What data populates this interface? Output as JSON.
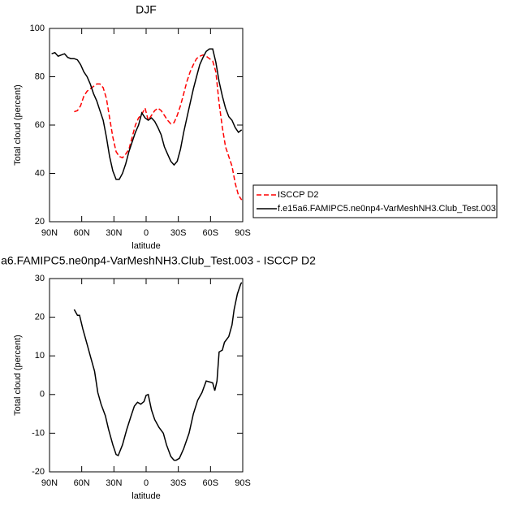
{
  "chart_data": [
    {
      "type": "line",
      "title": "DJF",
      "xlabel": "latitude",
      "ylabel": "Total cloud (percent)",
      "x": [
        88,
        85,
        82,
        79,
        76,
        73,
        70,
        67,
        64,
        61,
        58,
        55,
        52,
        49,
        46,
        43,
        40,
        37,
        34,
        31,
        28,
        25,
        22,
        19,
        16,
        13,
        10,
        7,
        4,
        1,
        -2,
        -5,
        -8,
        -11,
        -14,
        -17,
        -20,
        -23,
        -26,
        -29,
        -32,
        -35,
        -38,
        -41,
        -44,
        -47,
        -50,
        -53,
        -56,
        -59,
        -62,
        -65,
        -68,
        -71,
        -74,
        -77,
        -80,
        -83,
        -86,
        -89
      ],
      "series": [
        {
          "name": "ISCCP D2",
          "color": "#ff0000",
          "dash": true,
          "values": [
            null,
            null,
            null,
            null,
            null,
            null,
            null,
            65.5,
            66,
            68,
            72,
            74,
            75,
            76,
            77,
            77,
            75.5,
            71,
            63,
            55,
            49,
            47,
            46.5,
            48,
            50,
            55,
            60,
            63,
            64.5,
            67,
            62,
            64,
            66,
            67,
            66,
            64,
            62,
            60.5,
            61,
            64,
            68,
            73,
            78,
            82,
            85,
            87.5,
            88.5,
            89,
            88.5,
            87.5,
            86.5,
            82,
            69,
            59,
            51,
            47,
            43,
            36,
            31,
            29
          ]
        },
        {
          "name": "f.e15a6.FAMIPC5.ne0np4-VarMeshNH3.Club_Test.003",
          "color": "#000000",
          "dash": false,
          "values": [
            89.5,
            90,
            88.5,
            89,
            89.5,
            88,
            87.5,
            87.5,
            87,
            85,
            82,
            80,
            77,
            73,
            70,
            66,
            62,
            55,
            47,
            41,
            37.5,
            37.5,
            40,
            44,
            49,
            53,
            57,
            60,
            65,
            63,
            62,
            63,
            61.5,
            59,
            56,
            51,
            48,
            45,
            43.5,
            45,
            50,
            57,
            63,
            69,
            75,
            80,
            85,
            88,
            90.5,
            91.5,
            91.5,
            86,
            78,
            72,
            67,
            63.5,
            62,
            59,
            57,
            58
          ]
        }
      ],
      "xlim": [
        90,
        -90
      ],
      "xticks": [
        {
          "value": 90,
          "label": "90N"
        },
        {
          "value": 60,
          "label": "60N"
        },
        {
          "value": 30,
          "label": "30N"
        },
        0,
        {
          "value": -30,
          "label": "30S"
        },
        {
          "value": -60,
          "label": "60S"
        },
        {
          "value": -90,
          "label": "90S"
        }
      ],
      "ylim": [
        20,
        100
      ],
      "yticks": [
        20,
        40,
        60,
        80,
        100
      ],
      "legend": "right"
    },
    {
      "type": "line",
      "title": "a6.FAMIPC5.ne0np4-VarMeshNH3.Club_Test.003 - ISCCP D2",
      "xlabel": "latitude",
      "ylabel": "Total cloud (percent)",
      "x": [
        67,
        64,
        62,
        59,
        55,
        52,
        48,
        45,
        42,
        38,
        35,
        31,
        28,
        26,
        22,
        18,
        14,
        11,
        8,
        5,
        2,
        0,
        -2,
        -5,
        -8,
        -12,
        -16,
        -19,
        -23,
        -26,
        -28,
        -31,
        -35,
        -40,
        -44,
        -48,
        -52,
        -56,
        -60,
        -62,
        -64,
        -66,
        -68,
        -71,
        -73,
        -77,
        -80,
        -82,
        -85,
        -88,
        -89
      ],
      "series": [
        {
          "name": null,
          "color": "#000000",
          "dash": false,
          "values": [
            22,
            20.5,
            20.5,
            17,
            13,
            10,
            6,
            0.5,
            -2.5,
            -5.5,
            -9,
            -13,
            -15.5,
            -15.8,
            -13,
            -9,
            -5.5,
            -3,
            -2,
            -2.5,
            -1.8,
            -0.2,
            0,
            -4,
            -6.5,
            -8.5,
            -10,
            -13,
            -16,
            -17,
            -17,
            -16.5,
            -14,
            -10,
            -5,
            -1.5,
            0.5,
            3.5,
            3.2,
            3,
            1,
            3.5,
            11,
            11.5,
            13.5,
            15,
            18,
            22,
            26,
            28.5,
            29
          ]
        }
      ],
      "xlim": [
        90,
        -90
      ],
      "xticks": [
        {
          "value": 90,
          "label": "90N"
        },
        {
          "value": 60,
          "label": "60N"
        },
        {
          "value": 30,
          "label": "30N"
        },
        0,
        {
          "value": -30,
          "label": "30S"
        },
        {
          "value": -60,
          "label": "60S"
        },
        {
          "value": -90,
          "label": "90S"
        }
      ],
      "ylim": [
        -20,
        30
      ],
      "yticks": [
        -20,
        -10,
        0,
        10,
        20,
        30
      ]
    }
  ]
}
